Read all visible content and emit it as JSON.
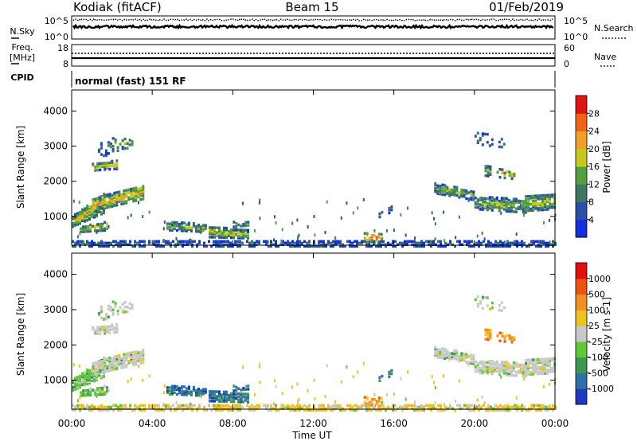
{
  "header": {
    "station": "Kodiak (fitACF)",
    "beam": "Beam 15",
    "date": "01/Feb/2019"
  },
  "strip_noise": {
    "left_label": "N.Sky",
    "right_label": "N.Search",
    "left_ticks": [
      "10^5",
      "10^0"
    ],
    "right_ticks": [
      "10^5",
      "10^0"
    ]
  },
  "strip_freq": {
    "left_label_1": "Freq.",
    "left_label_2": "[MHz]",
    "right_label": "Nave",
    "left_ticks": [
      "18",
      "8"
    ],
    "right_ticks": [
      "60",
      "0"
    ]
  },
  "cpid": {
    "label": "CPID",
    "value": "normal (fast) 151 RF"
  },
  "chart_data": [
    {
      "type": "heatmap",
      "ylabel": "Slant Range [km]",
      "yticks": [
        "1000",
        "2000",
        "3000",
        "4000"
      ],
      "colorbar": {
        "label": "Power [dB]",
        "ticks": [
          "4",
          "8",
          "12",
          "16",
          "20",
          "24",
          "28"
        ],
        "colors": [
          "#1030e0",
          "#2850a8",
          "#3c7864",
          "#50a040",
          "#c8c81c",
          "#f0a028",
          "#f06418",
          "#e01414"
        ]
      }
    },
    {
      "type": "heatmap",
      "ylabel": "Slant Range [km]",
      "xlabel": "Time UT",
      "yticks": [
        "1000",
        "2000",
        "3000",
        "4000"
      ],
      "xticks": [
        "00:00",
        "04:00",
        "08:00",
        "12:00",
        "16:00",
        "20:00",
        "00:00"
      ],
      "colorbar": {
        "label": "Velocity [m s-1]",
        "ticks": [
          "1000",
          "500",
          "100",
          "25",
          "-25",
          "-100",
          "-500",
          "-1000"
        ],
        "colors": [
          "#1a3ac0",
          "#3070a8",
          "#3a9850",
          "#60c838",
          "#c8c8c8",
          "#f0c020",
          "#f09020",
          "#f05010",
          "#e01010"
        ]
      }
    }
  ]
}
